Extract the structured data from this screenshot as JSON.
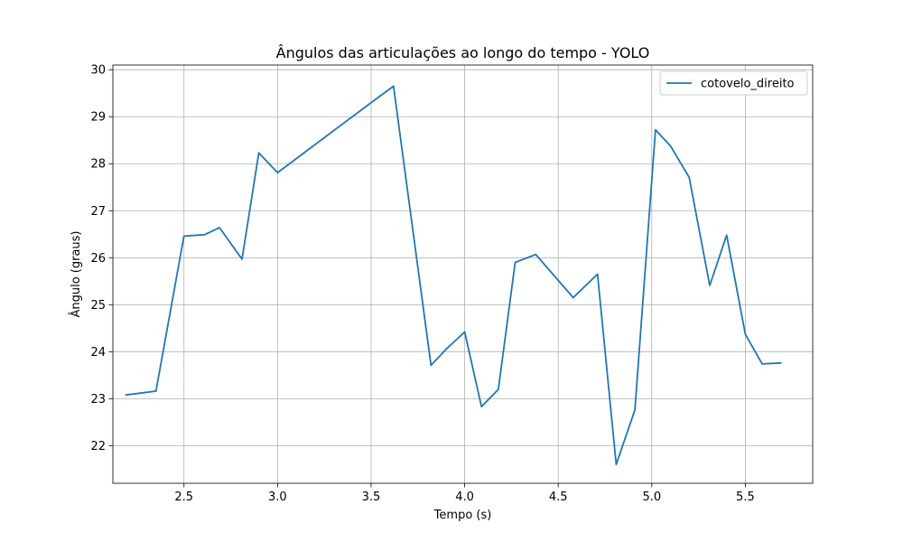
{
  "chart_data": {
    "type": "line",
    "title": "Ângulos das articulações ao longo do tempo - YOLO",
    "xlabel": "Tempo (s)",
    "ylabel": "Ângulo (graus)",
    "xlim": [
      2.12,
      5.86
    ],
    "ylim": [
      21.2,
      30.1
    ],
    "xticks": [
      2.5,
      3.0,
      3.5,
      4.0,
      4.5,
      5.0,
      5.5
    ],
    "xtick_labels": [
      "2.5",
      "3.0",
      "3.5",
      "4.0",
      "4.5",
      "5.0",
      "5.5"
    ],
    "yticks": [
      22,
      23,
      24,
      25,
      26,
      27,
      28,
      29,
      30
    ],
    "ytick_labels": [
      "22",
      "23",
      "24",
      "25",
      "26",
      "27",
      "28",
      "29",
      "30"
    ],
    "grid": true,
    "legend_position": "top-right",
    "series": [
      {
        "name": "cotovelo_direito",
        "color": "#1f77b4",
        "x": [
          2.19,
          2.35,
          2.5,
          2.61,
          2.69,
          2.81,
          2.9,
          3.0,
          3.5,
          3.62,
          3.82,
          3.9,
          4.0,
          4.09,
          4.18,
          4.27,
          4.38,
          4.58,
          4.71,
          4.81,
          4.91,
          5.02,
          5.1,
          5.2,
          5.31,
          5.4,
          5.5,
          5.59,
          5.69
        ],
        "y": [
          23.08,
          23.16,
          26.46,
          26.49,
          26.64,
          25.97,
          28.23,
          27.81,
          29.3,
          29.65,
          23.71,
          24.05,
          24.42,
          22.83,
          23.2,
          25.9,
          26.07,
          25.15,
          25.65,
          21.6,
          22.76,
          28.72,
          28.38,
          27.71,
          25.41,
          26.48,
          24.37,
          23.74,
          23.76
        ]
      }
    ]
  }
}
